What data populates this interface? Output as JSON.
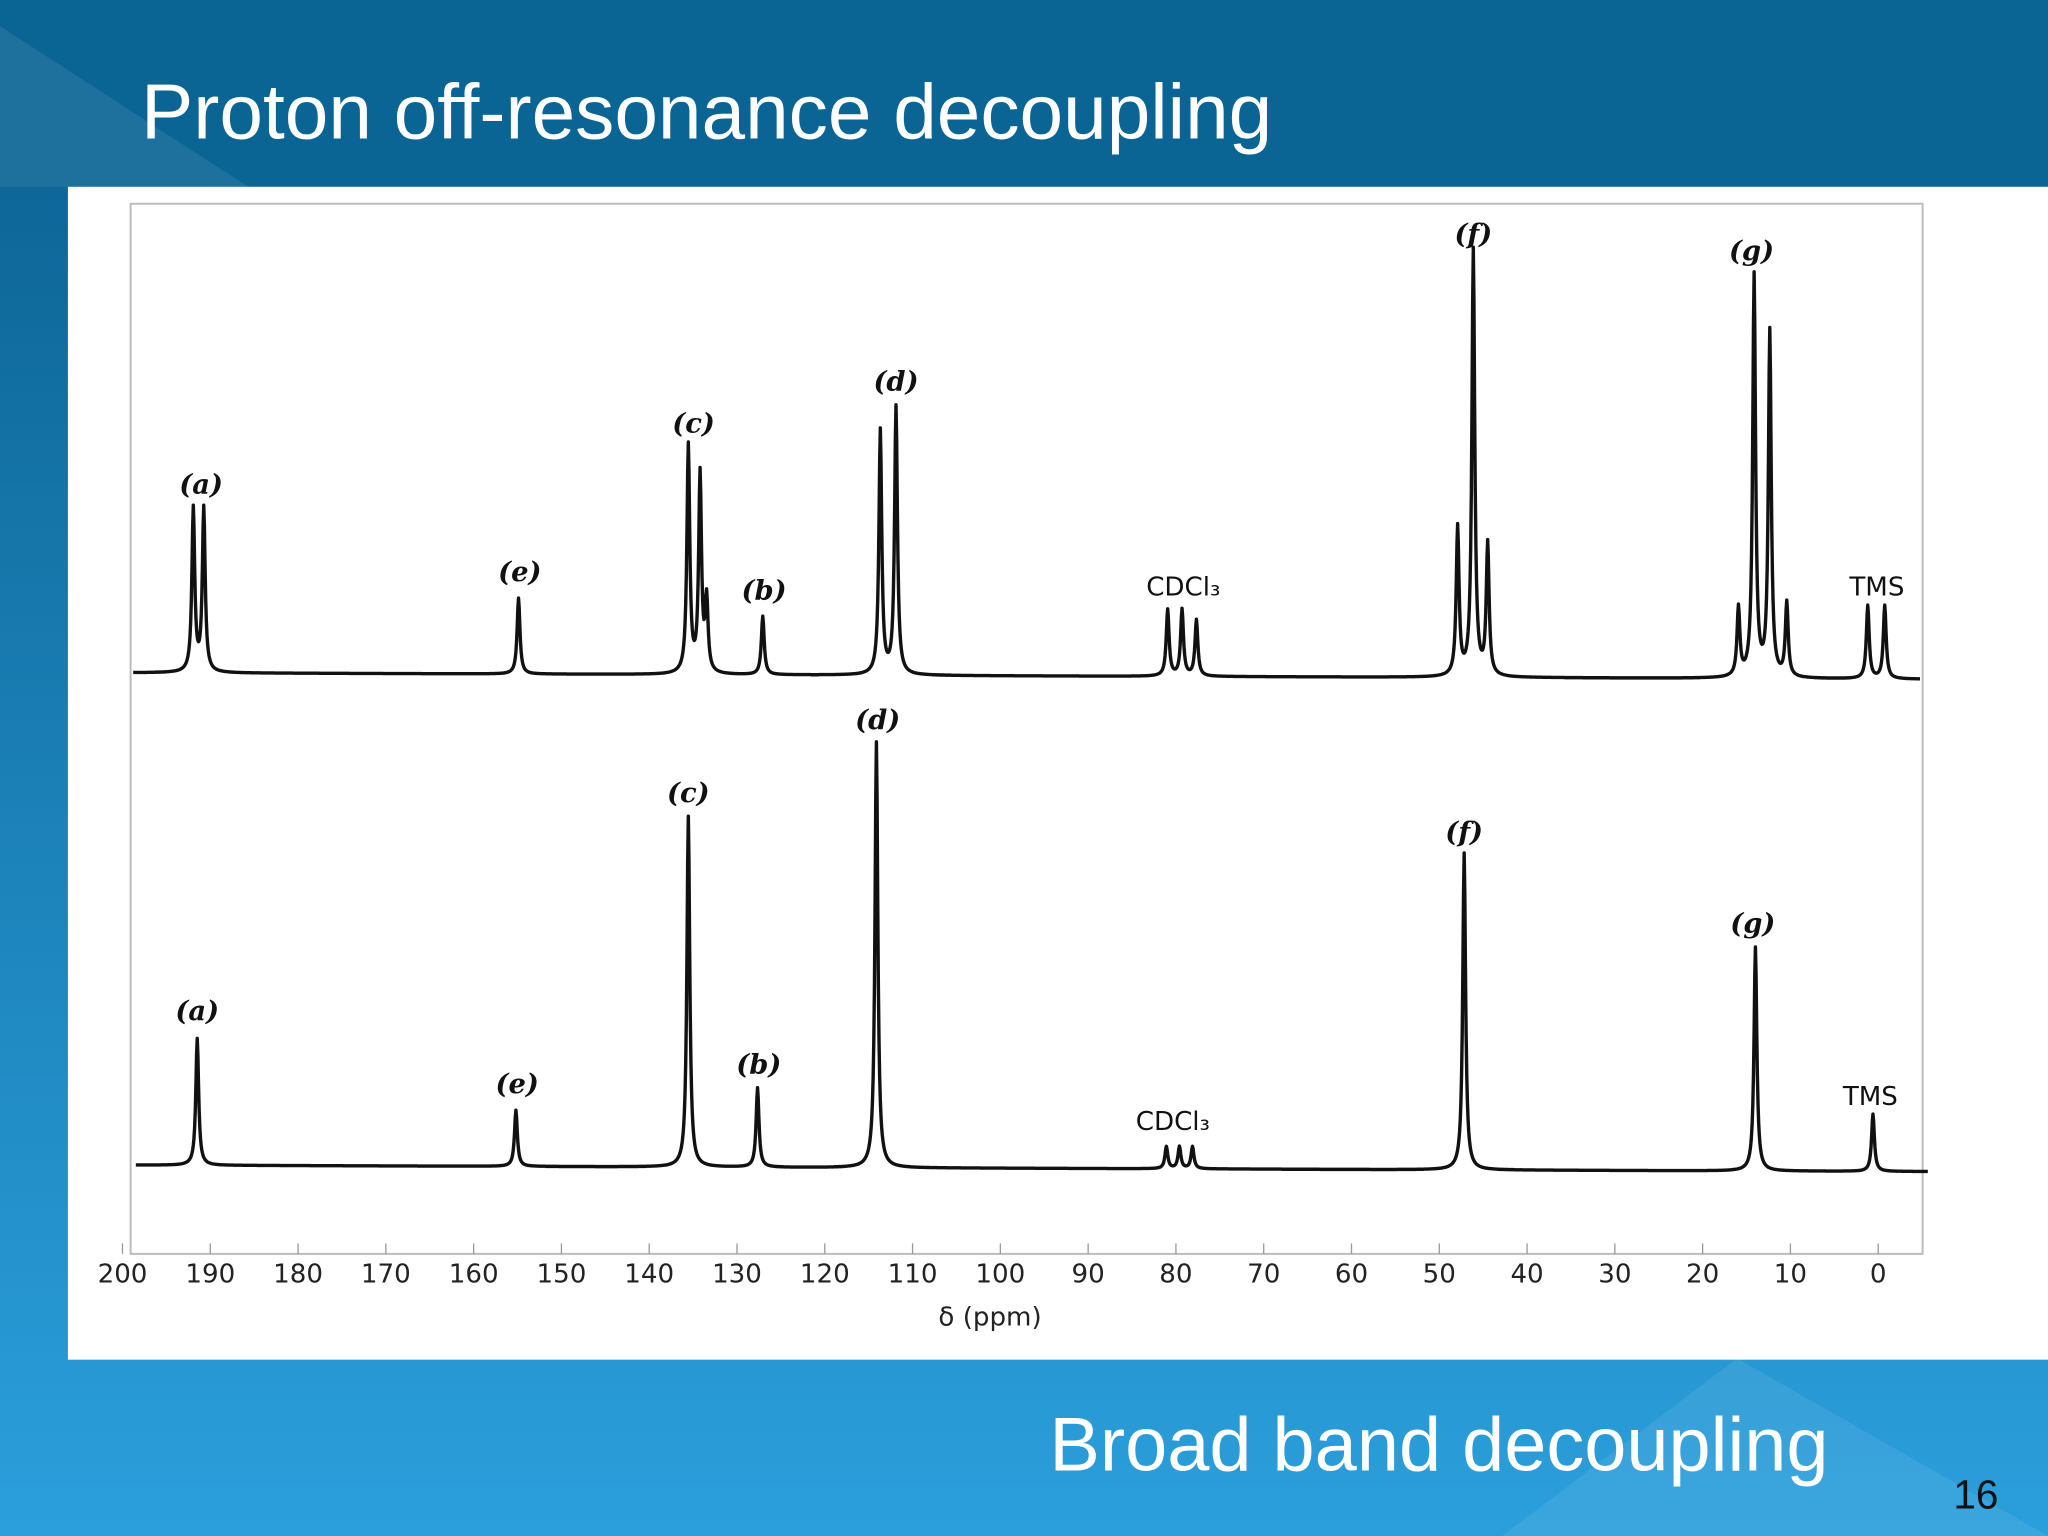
{
  "slide": {
    "title": "Proton off-resonance decoupling",
    "caption": "Broad band decoupling",
    "page_number": "16",
    "figure": {
      "xlabel": "δ (ppm)",
      "xticks": [
        200,
        190,
        180,
        170,
        160,
        150,
        140,
        130,
        120,
        110,
        100,
        90,
        80,
        70,
        60,
        50,
        40,
        30,
        20,
        10,
        0
      ],
      "top_labels": [
        "(a)",
        "(e)",
        "(c)",
        "(b)",
        "(d)",
        "CDCl₃",
        "(f)",
        "(g)",
        "TMS"
      ],
      "bottom_labels": [
        "(a)",
        "(e)",
        "(c)",
        "(b)",
        "(d)",
        "CDCl₃",
        "(f)",
        "(g)",
        "TMS"
      ]
    }
  }
}
